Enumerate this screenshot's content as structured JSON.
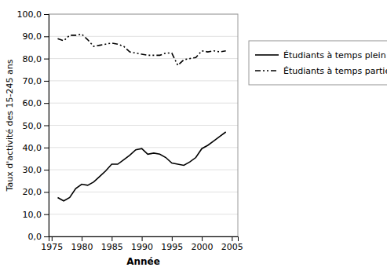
{
  "chart_data": {
    "type": "line",
    "xlabel": "Année",
    "ylabel": "Taux d'activité des 15-245 ans",
    "x": [
      1976,
      1977,
      1978,
      1979,
      1980,
      1981,
      1982,
      1983,
      1984,
      1985,
      1986,
      1987,
      1988,
      1989,
      1990,
      1991,
      1992,
      1993,
      1994,
      1995,
      1996,
      1997,
      1998,
      1999,
      2000,
      2001,
      2002,
      2003,
      2004
    ],
    "series": [
      {
        "name": "Étudiants à temps plein",
        "color": "#000000",
        "line_style": "solid",
        "values": [
          17.5,
          16.0,
          17.5,
          21.5,
          23.5,
          23.0,
          24.5,
          27.0,
          29.5,
          32.5,
          32.5,
          34.5,
          36.5,
          39.0,
          39.5,
          37.0,
          37.5,
          37.0,
          35.5,
          33.0,
          32.5,
          32.0,
          33.5,
          35.5,
          39.5,
          41.0,
          43.0,
          45.0,
          47.0
        ]
      },
      {
        "name": "Étudiants à temps partiel",
        "color": "#000000",
        "line_style": "dashdot",
        "values": [
          89.0,
          88.0,
          90.5,
          90.5,
          91.0,
          88.5,
          85.5,
          86.0,
          86.5,
          87.0,
          86.5,
          85.5,
          83.0,
          82.5,
          82.0,
          81.5,
          81.5,
          81.5,
          82.5,
          82.5,
          77.0,
          79.5,
          80.0,
          80.5,
          83.5,
          83.0,
          83.5,
          83.0,
          83.5
        ]
      }
    ],
    "xlim": [
      1974.5,
      2006
    ],
    "ylim": [
      0,
      100
    ],
    "xticks": [
      1975,
      1980,
      1985,
      1990,
      1995,
      2000,
      2005
    ],
    "yticks": [
      {
        "value": 0,
        "label": "0,0"
      },
      {
        "value": 10,
        "label": "10,0"
      },
      {
        "value": 20,
        "label": "20,0"
      },
      {
        "value": 30,
        "label": "30,0"
      },
      {
        "value": 40,
        "label": "40,0"
      },
      {
        "value": 50,
        "label": "50,0"
      },
      {
        "value": 60,
        "label": "60,0"
      },
      {
        "value": 70,
        "label": "70,0"
      },
      {
        "value": 80,
        "label": "80,0"
      },
      {
        "value": 90,
        "label": "90,0"
      },
      {
        "value": 100,
        "label": "100,0"
      }
    ],
    "grid": "y",
    "legend": "right"
  }
}
